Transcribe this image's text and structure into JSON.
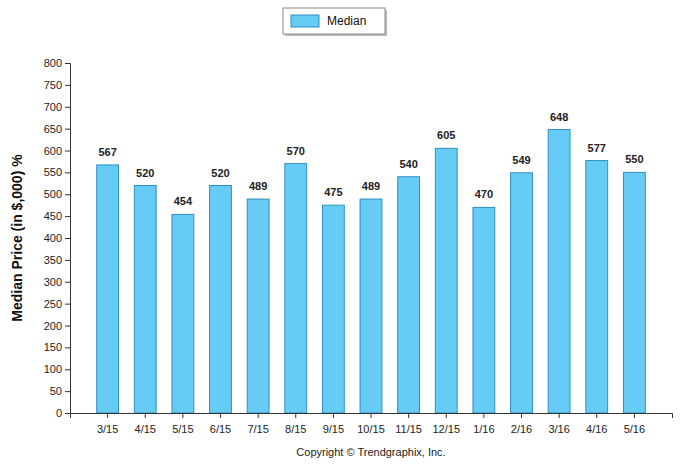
{
  "chart_data": {
    "type": "bar",
    "y_label": "Median Price (in $,000) %",
    "annotations": [
      "Copyright © Trendgraphix, Inc."
    ],
    "categories": [
      "3/15",
      "4/15",
      "5/15",
      "6/15",
      "7/15",
      "8/15",
      "9/15",
      "10/15",
      "11/15",
      "12/15",
      "1/16",
      "2/16",
      "3/16",
      "4/16",
      "5/16"
    ],
    "series": [
      {
        "name": "Median",
        "color": "#66ccf5",
        "values": [
          567,
          520,
          454,
          520,
          489,
          570,
          475,
          489,
          540,
          605,
          470,
          549,
          648,
          577,
          550
        ]
      }
    ],
    "ylim": [
      0,
      800
    ],
    "yticks": [
      0,
      50,
      100,
      150,
      200,
      250,
      300,
      350,
      400,
      450,
      500,
      550,
      600,
      650,
      700,
      750,
      800
    ],
    "grid": false,
    "legend": "top",
    "data_labels": true
  }
}
